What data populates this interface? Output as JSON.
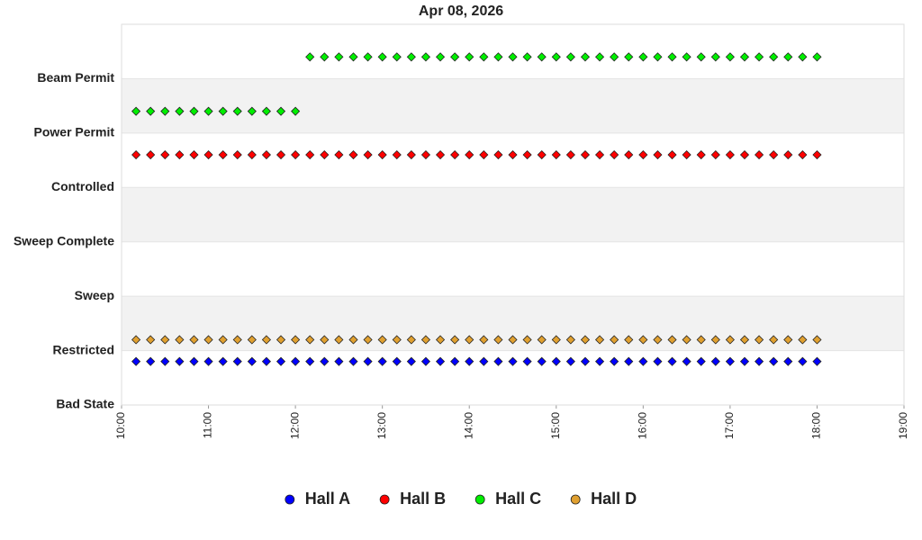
{
  "chart_data": {
    "type": "scatter",
    "title": "Apr 08, 2026",
    "xlim": [
      600,
      1140
    ],
    "xticks": [
      {
        "value": 600,
        "label": "10:00"
      },
      {
        "value": 660,
        "label": "11:00"
      },
      {
        "value": 720,
        "label": "12:00"
      },
      {
        "value": 780,
        "label": "13:00"
      },
      {
        "value": 840,
        "label": "14:00"
      },
      {
        "value": 900,
        "label": "15:00"
      },
      {
        "value": 960,
        "label": "16:00"
      },
      {
        "value": 1020,
        "label": "17:00"
      },
      {
        "value": 1080,
        "label": "18:00"
      },
      {
        "value": 1140,
        "label": "19:00"
      }
    ],
    "ylim": [
      0,
      7
    ],
    "yticks": [
      {
        "value": 0,
        "label": "Bad State"
      },
      {
        "value": 1,
        "label": "Restricted"
      },
      {
        "value": 2,
        "label": "Sweep"
      },
      {
        "value": 3,
        "label": "Sweep Complete"
      },
      {
        "value": 4,
        "label": "Controlled"
      },
      {
        "value": 5,
        "label": "Power Permit"
      },
      {
        "value": 6,
        "label": "Beam Permit"
      }
    ],
    "series": [
      {
        "name": "Hall A",
        "color": "#0000ff",
        "x": [
          610,
          620,
          630,
          640,
          650,
          660,
          670,
          680,
          690,
          700,
          710,
          720,
          730,
          740,
          750,
          760,
          770,
          780,
          790,
          800,
          810,
          820,
          830,
          840,
          850,
          860,
          870,
          880,
          890,
          900,
          910,
          920,
          930,
          940,
          950,
          960,
          970,
          980,
          990,
          1000,
          1010,
          1020,
          1030,
          1040,
          1050,
          1060,
          1070,
          1080
        ],
        "values": [
          0.8,
          0.8,
          0.8,
          0.8,
          0.8,
          0.8,
          0.8,
          0.8,
          0.8,
          0.8,
          0.8,
          0.8,
          0.8,
          0.8,
          0.8,
          0.8,
          0.8,
          0.8,
          0.8,
          0.8,
          0.8,
          0.8,
          0.8,
          0.8,
          0.8,
          0.8,
          0.8,
          0.8,
          0.8,
          0.8,
          0.8,
          0.8,
          0.8,
          0.8,
          0.8,
          0.8,
          0.8,
          0.8,
          0.8,
          0.8,
          0.8,
          0.8,
          0.8,
          0.8,
          0.8,
          0.8,
          0.8,
          0.8
        ]
      },
      {
        "name": "Hall B",
        "color": "#ff0000",
        "x": [
          610,
          620,
          630,
          640,
          650,
          660,
          670,
          680,
          690,
          700,
          710,
          720,
          730,
          740,
          750,
          760,
          770,
          780,
          790,
          800,
          810,
          820,
          830,
          840,
          850,
          860,
          870,
          880,
          890,
          900,
          910,
          920,
          930,
          940,
          950,
          960,
          970,
          980,
          990,
          1000,
          1010,
          1020,
          1030,
          1040,
          1050,
          1060,
          1070,
          1080
        ],
        "values": [
          4.6,
          4.6,
          4.6,
          4.6,
          4.6,
          4.6,
          4.6,
          4.6,
          4.6,
          4.6,
          4.6,
          4.6,
          4.6,
          4.6,
          4.6,
          4.6,
          4.6,
          4.6,
          4.6,
          4.6,
          4.6,
          4.6,
          4.6,
          4.6,
          4.6,
          4.6,
          4.6,
          4.6,
          4.6,
          4.6,
          4.6,
          4.6,
          4.6,
          4.6,
          4.6,
          4.6,
          4.6,
          4.6,
          4.6,
          4.6,
          4.6,
          4.6,
          4.6,
          4.6,
          4.6,
          4.6,
          4.6,
          4.6
        ]
      },
      {
        "name": "Hall C",
        "color": "#00ee00",
        "x": [
          610,
          620,
          630,
          640,
          650,
          660,
          670,
          680,
          690,
          700,
          710,
          720,
          730,
          740,
          750,
          760,
          770,
          780,
          790,
          800,
          810,
          820,
          830,
          840,
          850,
          860,
          870,
          880,
          890,
          900,
          910,
          920,
          930,
          940,
          950,
          960,
          970,
          980,
          990,
          1000,
          1010,
          1020,
          1030,
          1040,
          1050,
          1060,
          1070,
          1080
        ],
        "values": [
          5.4,
          5.4,
          5.4,
          5.4,
          5.4,
          5.4,
          5.4,
          5.4,
          5.4,
          5.4,
          5.4,
          5.4,
          6.4,
          6.4,
          6.4,
          6.4,
          6.4,
          6.4,
          6.4,
          6.4,
          6.4,
          6.4,
          6.4,
          6.4,
          6.4,
          6.4,
          6.4,
          6.4,
          6.4,
          6.4,
          6.4,
          6.4,
          6.4,
          6.4,
          6.4,
          6.4,
          6.4,
          6.4,
          6.4,
          6.4,
          6.4,
          6.4,
          6.4,
          6.4,
          6.4,
          6.4,
          6.4,
          6.4
        ]
      },
      {
        "name": "Hall D",
        "color": "#e0a030",
        "x": [
          610,
          620,
          630,
          640,
          650,
          660,
          670,
          680,
          690,
          700,
          710,
          720,
          730,
          740,
          750,
          760,
          770,
          780,
          790,
          800,
          810,
          820,
          830,
          840,
          850,
          860,
          870,
          880,
          890,
          900,
          910,
          920,
          930,
          940,
          950,
          960,
          970,
          980,
          990,
          1000,
          1010,
          1020,
          1030,
          1040,
          1050,
          1060,
          1070,
          1080
        ],
        "values": [
          1.2,
          1.2,
          1.2,
          1.2,
          1.2,
          1.2,
          1.2,
          1.2,
          1.2,
          1.2,
          1.2,
          1.2,
          1.2,
          1.2,
          1.2,
          1.2,
          1.2,
          1.2,
          1.2,
          1.2,
          1.2,
          1.2,
          1.2,
          1.2,
          1.2,
          1.2,
          1.2,
          1.2,
          1.2,
          1.2,
          1.2,
          1.2,
          1.2,
          1.2,
          1.2,
          1.2,
          1.2,
          1.2,
          1.2,
          1.2,
          1.2,
          1.2,
          1.2,
          1.2,
          1.2,
          1.2,
          1.2,
          1.2
        ]
      }
    ]
  }
}
